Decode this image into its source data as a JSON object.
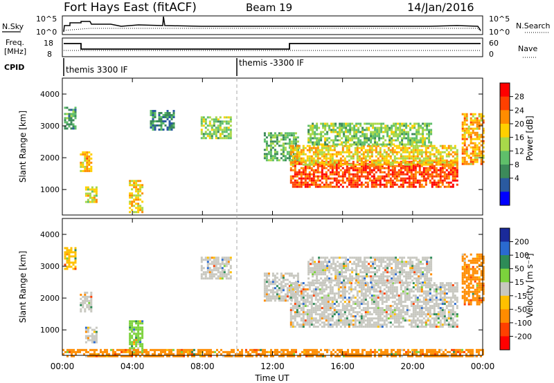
{
  "header": {
    "title": "Fort Hays East (fitACF)",
    "beam": "Beam 19",
    "date": "14/Jan/2016"
  },
  "summary_panel": {
    "nsky_label": "N.Sky",
    "left_ticks": [
      "10^5",
      "10^0"
    ],
    "right_ticks": [
      "10^5",
      "10^0"
    ],
    "nsearch_label": "N.Search"
  },
  "freq_panel": {
    "freq_label_line1": "Freq.",
    "freq_label_line2": "[MHz]",
    "left_ticks": [
      "18",
      "8"
    ],
    "right_ticks": [
      "60",
      "0"
    ],
    "nave_label": "Nave"
  },
  "cpid_panel": {
    "label": "CPID",
    "mode1": "themis 3300 IF",
    "mode2": "themis -3300 IF"
  },
  "power_colorbar": {
    "label": "Power [dB]",
    "ticks": [
      "28",
      "24",
      "20",
      "16",
      "12",
      "8",
      "4"
    ],
    "colors": [
      "#ff0000",
      "#ff4000",
      "#ff8c00",
      "#ffd000",
      "#a8d84a",
      "#5fbf6a",
      "#3c8a5a",
      "#2a5aa0",
      "#0000ff"
    ]
  },
  "velocity_colorbar": {
    "label": "Velocity [m s⁻¹]",
    "ticks": [
      "200",
      "100",
      "50",
      "15",
      "-15",
      "-50",
      "-100",
      "-200"
    ],
    "colors": [
      "#1a2a9a",
      "#2a6ad0",
      "#2e8b57",
      "#7cd23c",
      "#c8c8c0",
      "#ffc000",
      "#ff8c00",
      "#ff4000",
      "#ff0000"
    ]
  },
  "axes": {
    "ylabel": "Slant Range [km]",
    "yticks": [
      "4000",
      "3000",
      "2000",
      "1000"
    ],
    "xticks": [
      "00:00",
      "04:00",
      "08:00",
      "12:00",
      "16:00",
      "20:00",
      "00:00"
    ],
    "xlabel": "Time UT"
  },
  "chart_data": [
    {
      "type": "heatmap",
      "panel": "power",
      "x_unit": "hours UT",
      "xlim": [
        0,
        24
      ],
      "ylim": [
        200,
        4500
      ],
      "zlim": [
        0,
        32
      ],
      "patches": [
        {
          "x": [
            0.1,
            0.7
          ],
          "y": [
            2900,
            3600
          ],
          "value": 10
        },
        {
          "x": [
            1.0,
            1.6
          ],
          "y": [
            1600,
            2200
          ],
          "value": 22
        },
        {
          "x": [
            1.3,
            1.9
          ],
          "y": [
            600,
            1100
          ],
          "value": 18
        },
        {
          "x": [
            3.8,
            4.6
          ],
          "y": [
            300,
            1300
          ],
          "value": 20
        },
        {
          "x": [
            5.0,
            6.4
          ],
          "y": [
            2900,
            3500
          ],
          "value": 8
        },
        {
          "x": [
            7.9,
            9.6
          ],
          "y": [
            2600,
            3300
          ],
          "value": 14
        },
        {
          "x": [
            11.5,
            13.5
          ],
          "y": [
            1900,
            2800
          ],
          "value": 12
        },
        {
          "x": [
            13.0,
            22.5
          ],
          "y": [
            1100,
            1900
          ],
          "value": 28
        },
        {
          "x": [
            13.0,
            22.5
          ],
          "y": [
            1800,
            2400
          ],
          "value": 20
        },
        {
          "x": [
            14.0,
            21.0
          ],
          "y": [
            2400,
            3100
          ],
          "value": 14
        },
        {
          "x": [
            22.8,
            24.0
          ],
          "y": [
            1800,
            3400
          ],
          "value": 22
        }
      ]
    },
    {
      "type": "heatmap",
      "panel": "velocity",
      "x_unit": "hours UT",
      "xlim": [
        0,
        24
      ],
      "ylim": [
        200,
        4500
      ],
      "zlim": [
        -200,
        200
      ],
      "patches": [
        {
          "x": [
            0.1,
            0.7
          ],
          "y": [
            2900,
            3600
          ],
          "value": -50
        },
        {
          "x": [
            1.0,
            1.6
          ],
          "y": [
            1600,
            2200
          ],
          "value": 0
        },
        {
          "x": [
            1.3,
            1.9
          ],
          "y": [
            600,
            1100
          ],
          "value": 0
        },
        {
          "x": [
            3.8,
            4.6
          ],
          "y": [
            300,
            1300
          ],
          "value": 30
        },
        {
          "x": [
            7.9,
            9.6
          ],
          "y": [
            2600,
            3300
          ],
          "value": 0
        },
        {
          "x": [
            11.5,
            13.5
          ],
          "y": [
            1900,
            2800
          ],
          "value": 10
        },
        {
          "x": [
            13.0,
            22.5
          ],
          "y": [
            1100,
            2500
          ],
          "value": 0
        },
        {
          "x": [
            14.0,
            21.0
          ],
          "y": [
            2500,
            3300
          ],
          "value": 0
        },
        {
          "x": [
            22.8,
            24.0
          ],
          "y": [
            1800,
            3400
          ],
          "value": -60
        },
        {
          "x": [
            0,
            24
          ],
          "y": [
            150,
            400
          ],
          "value": -60
        }
      ]
    }
  ]
}
